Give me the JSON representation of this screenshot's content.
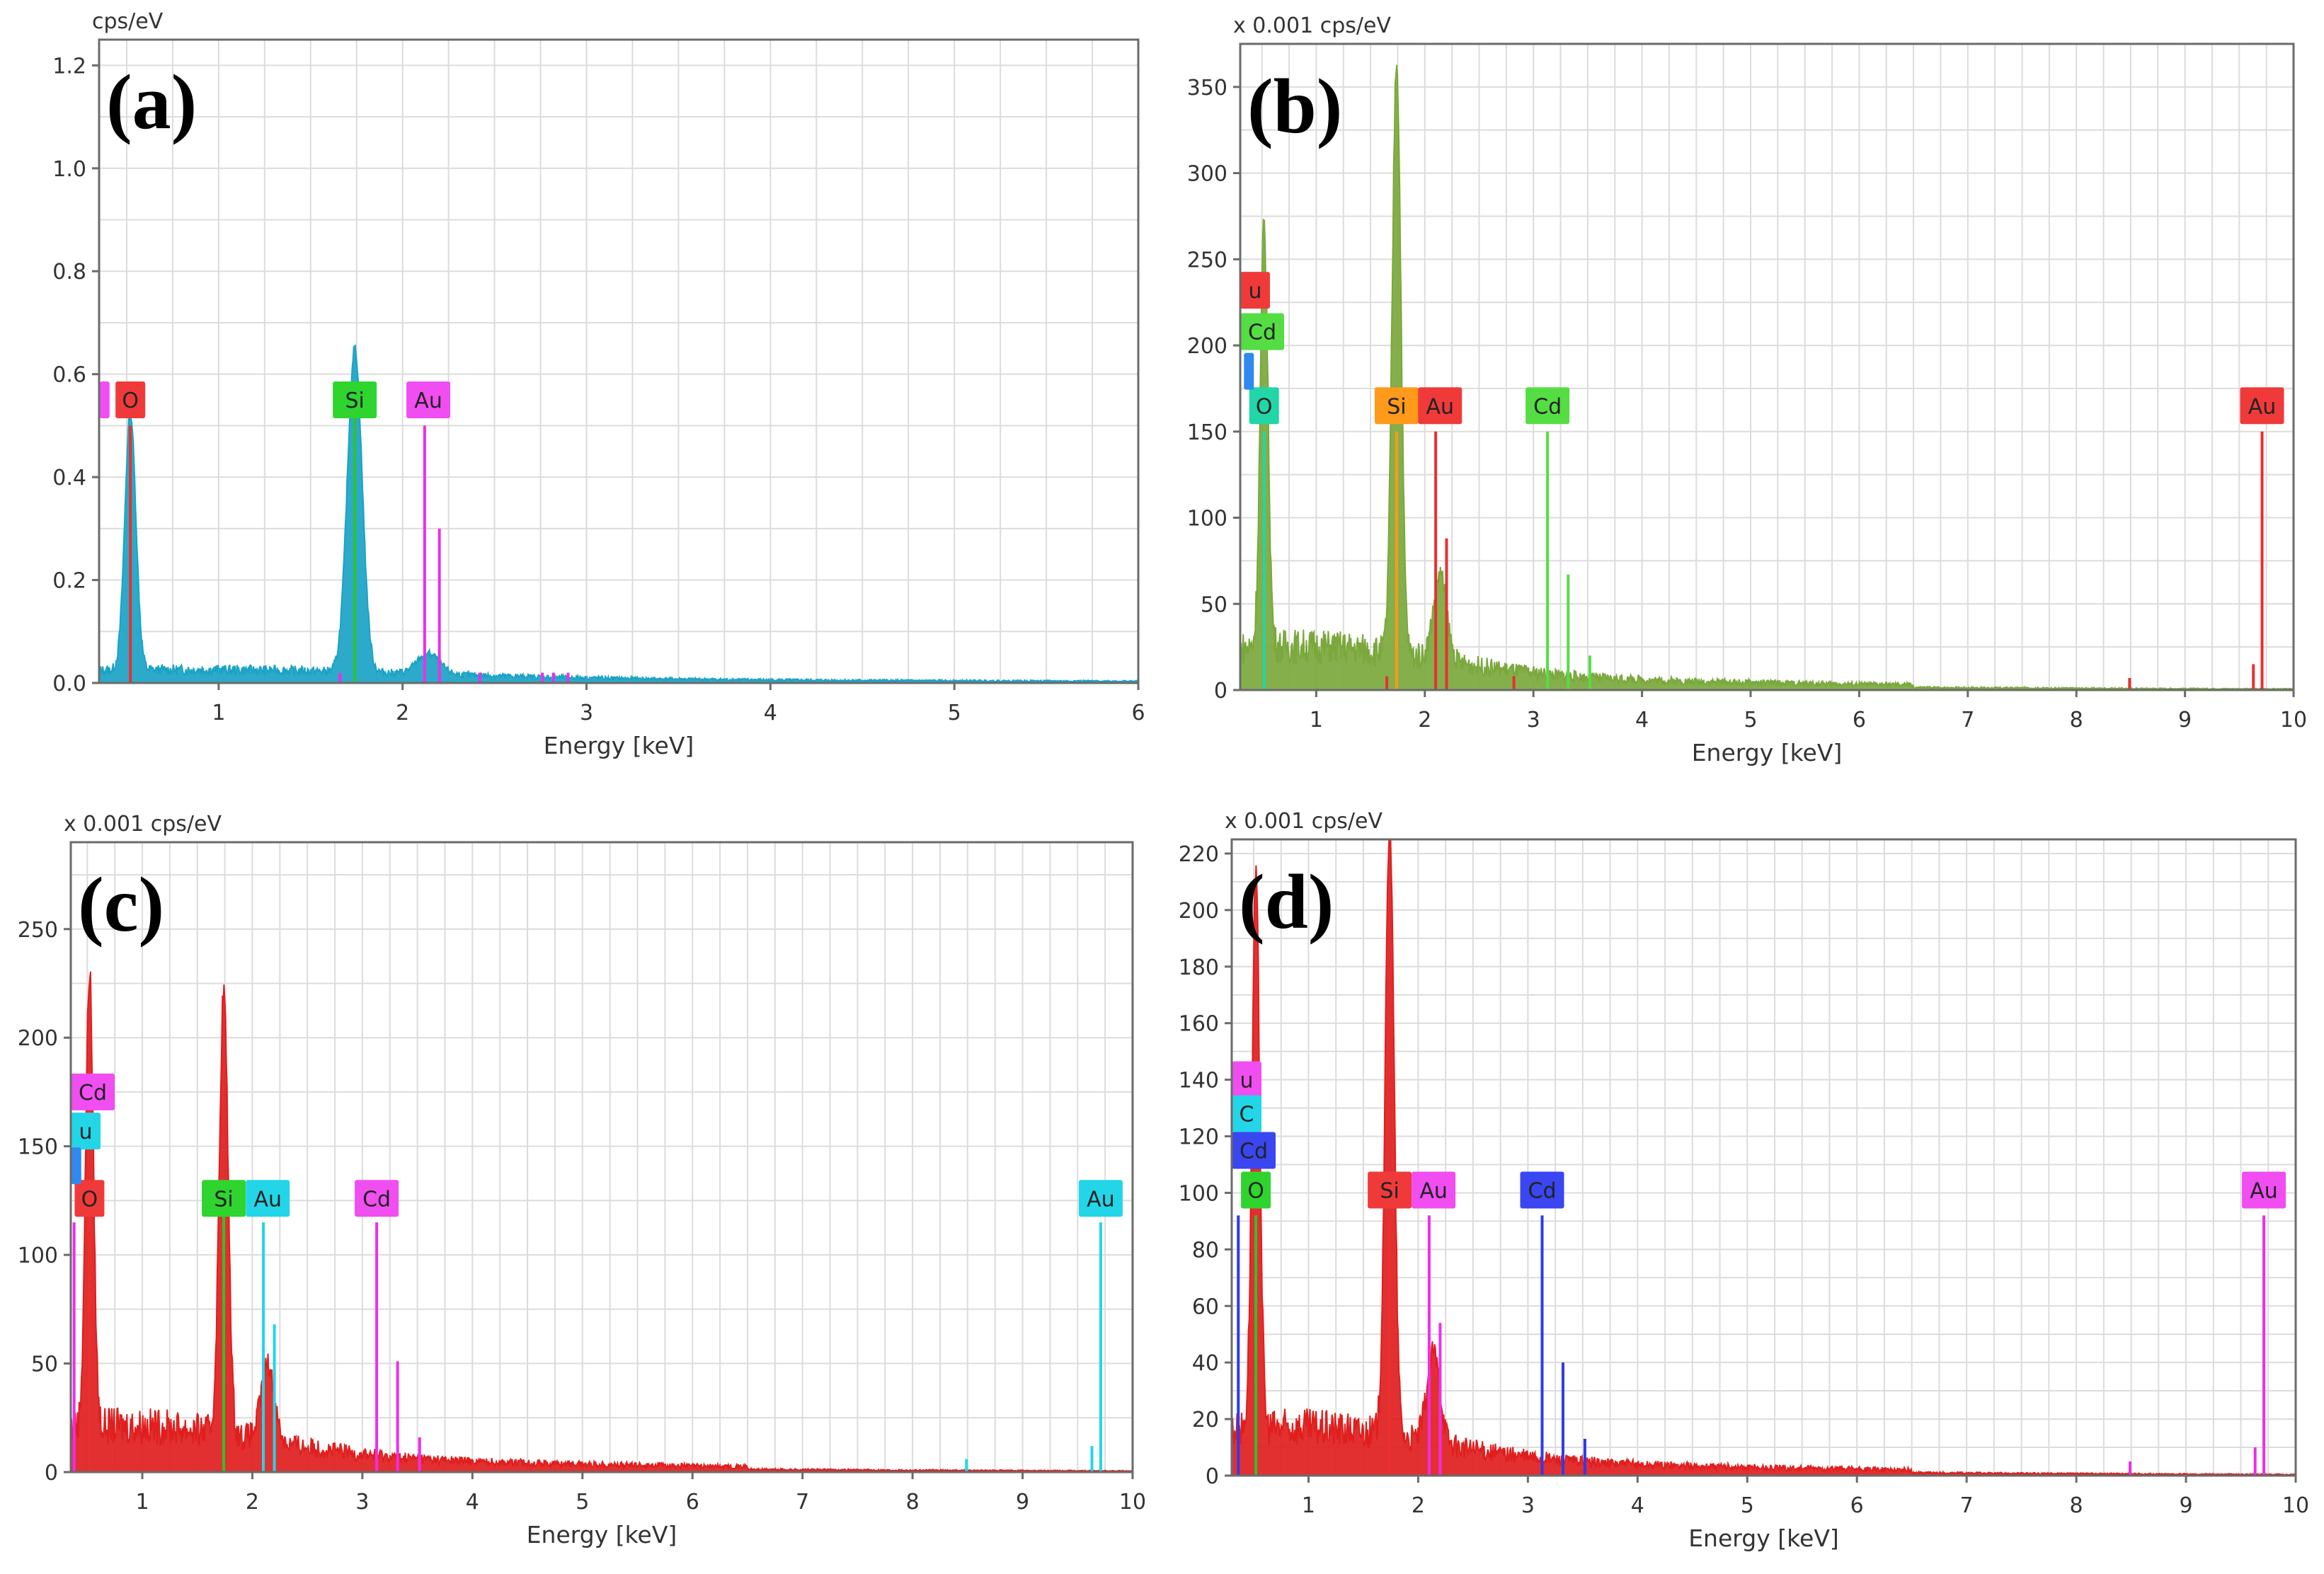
{
  "chart_data": [
    {
      "type": "area",
      "panel_label": "(a)",
      "title": "",
      "ylabel": "cps/eV",
      "xlabel": "Energy [keV]",
      "xlim": [
        0.35,
        6
      ],
      "ylim": [
        0,
        1.25
      ],
      "xticks": [
        1,
        2,
        3,
        4,
        5,
        6
      ],
      "xtick_labels": [
        "1",
        "2",
        "3",
        "4",
        "5",
        "6"
      ],
      "yticks": [
        0.0,
        0.2,
        0.4,
        0.6,
        0.8,
        1.0,
        1.2
      ],
      "ytick_labels": [
        "0.0",
        "0.2",
        "0.4",
        "0.6",
        "0.8",
        "1.0",
        "1.2"
      ],
      "grid": true,
      "spectrum_color": "#1ba3c6",
      "baseline": 0.012,
      "peaks": [
        {
          "x": 0.52,
          "y": 0.5,
          "w": 0.03
        },
        {
          "x": 1.74,
          "y": 0.63,
          "w": 0.04
        },
        {
          "x": 2.14,
          "y": 0.04,
          "w": 0.06
        }
      ],
      "lines": [
        {
          "x": 0.52,
          "y": 0.5,
          "color": "#e8302f"
        },
        {
          "x": 1.74,
          "y": 0.55,
          "color": "#2fc22f"
        },
        {
          "x": 2.12,
          "y": 0.5,
          "color": "#ee2ee8"
        },
        {
          "x": 2.2,
          "y": 0.3,
          "color": "#ee2ee8"
        },
        {
          "x": 1.66,
          "y": 0.02,
          "color": "#ee2ee8"
        },
        {
          "x": 2.42,
          "y": 0.02,
          "color": "#ee2ee8"
        },
        {
          "x": 2.76,
          "y": 0.02,
          "color": "#ee2ee8"
        },
        {
          "x": 2.82,
          "y": 0.02,
          "color": "#ee2ee8"
        },
        {
          "x": 2.9,
          "y": 0.02,
          "color": "#ee2ee8"
        }
      ],
      "tags": [
        {
          "text": "O",
          "x": 0.52,
          "y": 0.55,
          "color": "#f03a3a"
        },
        {
          "text": "Si",
          "x": 1.74,
          "y": 0.55,
          "color": "#2fd42f"
        },
        {
          "text": "Au",
          "x": 2.14,
          "y": 0.55,
          "color": "#f04ef0"
        },
        {
          "text": "",
          "x": 0.38,
          "y": 0.55,
          "color": "#f04ef0"
        }
      ]
    },
    {
      "type": "area",
      "panel_label": "(b)",
      "title": "",
      "ylabel": "x 0.001 cps/eV",
      "xlabel": "Energy [keV]",
      "xlim": [
        0.3,
        10
      ],
      "ylim": [
        0,
        375
      ],
      "xticks": [
        1,
        2,
        3,
        4,
        5,
        6,
        7,
        8,
        9,
        10
      ],
      "xtick_labels": [
        "1",
        "2",
        "3",
        "4",
        "5",
        "6",
        "7",
        "8",
        "9",
        "10"
      ],
      "yticks": [
        0,
        50,
        100,
        150,
        200,
        250,
        300,
        350
      ],
      "ytick_labels": [
        "0",
        "50",
        "100",
        "150",
        "200",
        "250",
        "300",
        "350"
      ],
      "grid": true,
      "spectrum_color": "#7aa83c",
      "baseline": 12,
      "peaks": [
        {
          "x": 0.52,
          "y": 245,
          "w": 0.035
        },
        {
          "x": 1.74,
          "y": 345,
          "w": 0.04
        },
        {
          "x": 2.14,
          "y": 50,
          "w": 0.06
        }
      ],
      "lines": [
        {
          "x": 0.52,
          "y": 150,
          "color": "#22d6a8"
        },
        {
          "x": 1.74,
          "y": 150,
          "color": "#ff9a1a"
        },
        {
          "x": 2.1,
          "y": 150,
          "color": "#e8302f"
        },
        {
          "x": 2.2,
          "y": 88,
          "color": "#e8302f"
        },
        {
          "x": 3.13,
          "y": 150,
          "color": "#55dd44"
        },
        {
          "x": 3.32,
          "y": 67,
          "color": "#55dd44"
        },
        {
          "x": 3.52,
          "y": 20,
          "color": "#55dd44"
        },
        {
          "x": 9.71,
          "y": 150,
          "color": "#e8302f"
        },
        {
          "x": 9.63,
          "y": 15,
          "color": "#e8302f"
        },
        {
          "x": 8.49,
          "y": 7,
          "color": "#e8302f"
        },
        {
          "x": 1.65,
          "y": 8,
          "color": "#e8302f"
        },
        {
          "x": 2.82,
          "y": 8,
          "color": "#e8302f"
        }
      ],
      "tags": [
        {
          "text": "O",
          "x": 0.52,
          "y": 165,
          "color": "#22d6a8"
        },
        {
          "text": "Si",
          "x": 1.74,
          "y": 165,
          "color": "#ff9a1a"
        },
        {
          "text": "Au",
          "x": 2.14,
          "y": 165,
          "color": "#f03a3a"
        },
        {
          "text": "Cd",
          "x": 3.13,
          "y": 165,
          "color": "#55dd44"
        },
        {
          "text": "Au",
          "x": 9.71,
          "y": 165,
          "color": "#f03a3a"
        },
        {
          "text": "u",
          "x": 0.4,
          "y": 232,
          "color": "#f03a3a"
        },
        {
          "text": "Cd",
          "x": 0.4,
          "y": 208,
          "color": "#55dd44"
        },
        {
          "text": "",
          "x": 0.38,
          "y": 185,
          "color": "#2f8af0"
        }
      ]
    },
    {
      "type": "area",
      "panel_label": "(c)",
      "title": "",
      "ylabel": "x 0.001 cps/eV",
      "xlabel": "Energy [keV]",
      "xlim": [
        0.35,
        10
      ],
      "ylim": [
        0,
        290
      ],
      "xticks": [
        1,
        2,
        3,
        4,
        5,
        6,
        7,
        8,
        9,
        10
      ],
      "xtick_labels": [
        "1",
        "2",
        "3",
        "4",
        "5",
        "6",
        "7",
        "8",
        "9",
        "10"
      ],
      "yticks": [
        0,
        50,
        100,
        150,
        200,
        250
      ],
      "ytick_labels": [
        "0",
        "50",
        "100",
        "150",
        "200",
        "250"
      ],
      "grid": true,
      "spectrum_color": "#e01e1e",
      "baseline": 10,
      "peaks": [
        {
          "x": 0.52,
          "y": 210,
          "w": 0.035
        },
        {
          "x": 1.74,
          "y": 204,
          "w": 0.04
        },
        {
          "x": 2.14,
          "y": 35,
          "w": 0.06
        }
      ],
      "lines": [
        {
          "x": 0.52,
          "y": 118,
          "color": "#e8302f"
        },
        {
          "x": 1.74,
          "y": 118,
          "color": "#2fc22f"
        },
        {
          "x": 2.1,
          "y": 115,
          "color": "#22d6e8"
        },
        {
          "x": 2.2,
          "y": 68,
          "color": "#22d6e8"
        },
        {
          "x": 3.13,
          "y": 115,
          "color": "#ee2ee8"
        },
        {
          "x": 3.32,
          "y": 51,
          "color": "#ee2ee8"
        },
        {
          "x": 3.52,
          "y": 16,
          "color": "#ee2ee8"
        },
        {
          "x": 9.71,
          "y": 115,
          "color": "#22d6e8"
        },
        {
          "x": 9.63,
          "y": 12,
          "color": "#22d6e8"
        },
        {
          "x": 8.49,
          "y": 6,
          "color": "#22d6e8"
        },
        {
          "x": 0.38,
          "y": 115,
          "color": "#ee2ee8"
        }
      ],
      "tags": [
        {
          "text": "O",
          "x": 0.52,
          "y": 126,
          "color": "#f03a3a"
        },
        {
          "text": "Si",
          "x": 1.74,
          "y": 126,
          "color": "#2fd42f"
        },
        {
          "text": "Au",
          "x": 2.14,
          "y": 126,
          "color": "#22d6e8"
        },
        {
          "text": "Cd",
          "x": 3.13,
          "y": 126,
          "color": "#f04ef0"
        },
        {
          "text": "Au",
          "x": 9.71,
          "y": 126,
          "color": "#22d6e8"
        },
        {
          "text": "Cd",
          "x": 0.42,
          "y": 175,
          "color": "#f04ef0"
        },
        {
          "text": "u",
          "x": 0.42,
          "y": 157,
          "color": "#22d6e8"
        },
        {
          "text": "",
          "x": 0.4,
          "y": 141,
          "color": "#2f8af0"
        }
      ]
    },
    {
      "type": "area",
      "panel_label": "(d)",
      "title": "",
      "ylabel": "x 0.001 cps/eV",
      "xlabel": "Energy [keV]",
      "xlim": [
        0.3,
        10
      ],
      "ylim": [
        0,
        225
      ],
      "xticks": [
        1,
        2,
        3,
        4,
        5,
        6,
        7,
        8,
        9,
        10
      ],
      "xtick_labels": [
        "1",
        "2",
        "3",
        "4",
        "5",
        "6",
        "7",
        "8",
        "9",
        "10"
      ],
      "yticks": [
        0,
        20,
        40,
        60,
        80,
        100,
        120,
        140,
        160,
        180,
        200,
        220
      ],
      "ytick_labels": [
        "0",
        "20",
        "40",
        "60",
        "80",
        "100",
        "120",
        "140",
        "160",
        "180",
        "200",
        "220"
      ],
      "grid": true,
      "spectrum_color": "#e01e1e",
      "baseline": 8,
      "peaks": [
        {
          "x": 0.52,
          "y": 194,
          "w": 0.035
        },
        {
          "x": 1.74,
          "y": 217,
          "w": 0.04
        },
        {
          "x": 2.14,
          "y": 32,
          "w": 0.06
        }
      ],
      "lines": [
        {
          "x": 0.52,
          "y": 92,
          "color": "#2fc22f"
        },
        {
          "x": 1.74,
          "y": 92,
          "color": "#e8302f"
        },
        {
          "x": 2.1,
          "y": 92,
          "color": "#ee2ee8"
        },
        {
          "x": 2.2,
          "y": 54,
          "color": "#ee2ee8"
        },
        {
          "x": 3.13,
          "y": 92,
          "color": "#2f3ae8"
        },
        {
          "x": 3.32,
          "y": 40,
          "color": "#2f3ae8"
        },
        {
          "x": 3.52,
          "y": 13,
          "color": "#2f3ae8"
        },
        {
          "x": 9.71,
          "y": 92,
          "color": "#ee2ee8"
        },
        {
          "x": 9.63,
          "y": 10,
          "color": "#ee2ee8"
        },
        {
          "x": 8.49,
          "y": 5,
          "color": "#ee2ee8"
        },
        {
          "x": 0.36,
          "y": 92,
          "color": "#2f3ae8"
        }
      ],
      "tags": [
        {
          "text": "O",
          "x": 0.52,
          "y": 101,
          "color": "#2fd42f"
        },
        {
          "text": "Si",
          "x": 1.74,
          "y": 101,
          "color": "#f03a3a"
        },
        {
          "text": "Au",
          "x": 2.14,
          "y": 101,
          "color": "#f04ef0"
        },
        {
          "text": "Cd",
          "x": 3.13,
          "y": 101,
          "color": "#3a46f0"
        },
        {
          "text": "Au",
          "x": 9.71,
          "y": 101,
          "color": "#f04ef0"
        },
        {
          "text": "u",
          "x": 0.37,
          "y": 140,
          "color": "#f04ef0"
        },
        {
          "text": "C",
          "x": 0.37,
          "y": 128,
          "color": "#22d6e8"
        },
        {
          "text": "Cd",
          "x": 0.38,
          "y": 115,
          "color": "#3a46f0"
        }
      ]
    }
  ]
}
